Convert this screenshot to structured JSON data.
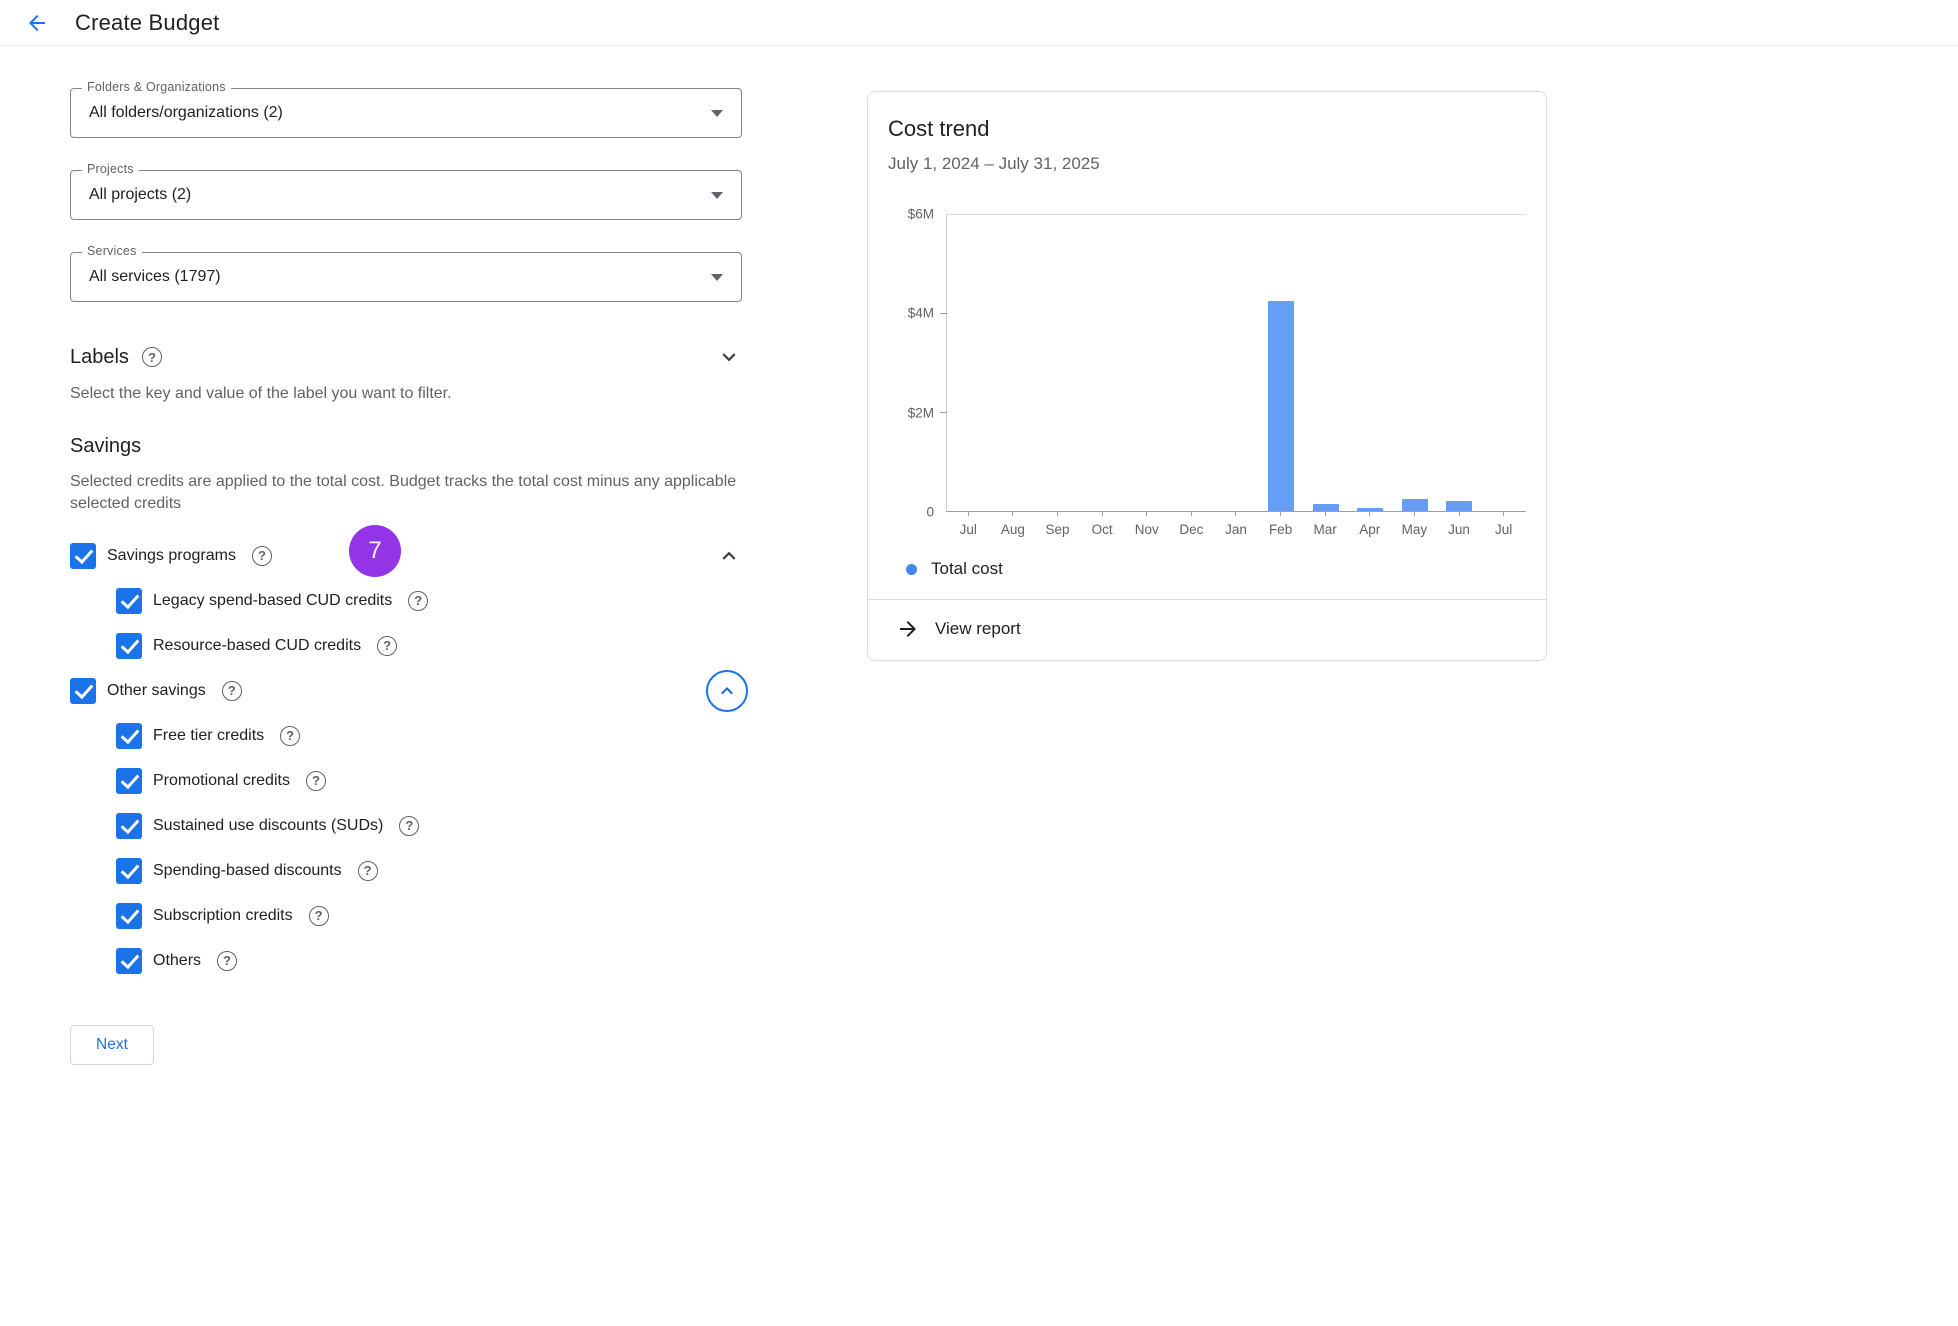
{
  "header": {
    "title": "Create Budget"
  },
  "filters": {
    "folders": {
      "label": "Folders & Organizations",
      "value": "All folders/organizations (2)"
    },
    "projects": {
      "label": "Projects",
      "value": "All projects (2)"
    },
    "services": {
      "label": "Services",
      "value": "All services (1797)"
    }
  },
  "labels_section": {
    "title": "Labels",
    "description": "Select the key and value of the label you want to filter."
  },
  "savings_section": {
    "title": "Savings",
    "description": "Selected credits are applied to the total cost. Budget tracks the total cost minus any applicable selected credits",
    "step_badge": "7",
    "groups": [
      {
        "label": "Savings programs",
        "checked": true,
        "children": [
          {
            "label": "Legacy spend-based CUD credits",
            "checked": true
          },
          {
            "label": "Resource-based CUD credits",
            "checked": true
          }
        ]
      },
      {
        "label": "Other savings",
        "checked": true,
        "children": [
          {
            "label": "Free tier credits",
            "checked": true
          },
          {
            "label": "Promotional credits",
            "checked": true
          },
          {
            "label": "Sustained use discounts (SUDs)",
            "checked": true
          },
          {
            "label": "Spending-based discounts",
            "checked": true
          },
          {
            "label": "Subscription credits",
            "checked": true
          },
          {
            "label": "Others",
            "checked": true
          }
        ]
      }
    ]
  },
  "actions": {
    "next_label": "Next"
  },
  "cost_trend": {
    "title": "Cost trend",
    "subtitle": "July 1, 2024 – July 31, 2025",
    "legend": "Total cost",
    "view_report_label": "View report"
  },
  "colors": {
    "accent_blue": "#1a73e8",
    "bar_blue": "#669df6",
    "legend_dot_blue": "#4285f4",
    "badge_purple": "#9334e6"
  },
  "chart_data": {
    "type": "bar",
    "title": "Cost trend",
    "series_name": "Total cost",
    "categories": [
      "Jul",
      "Aug",
      "Sep",
      "Oct",
      "Nov",
      "Dec",
      "Jan",
      "Feb",
      "Mar",
      "Apr",
      "May",
      "Jun",
      "Jul"
    ],
    "values": [
      0,
      0,
      0,
      0,
      0,
      0,
      0,
      4.25,
      0.15,
      0.06,
      0.25,
      0.2,
      0
    ],
    "unit": "$M",
    "ylim": [
      0,
      6
    ],
    "yticks": [
      {
        "label": "$6M",
        "value": 6
      },
      {
        "label": "$4M",
        "value": 4
      },
      {
        "label": "$2M",
        "value": 2
      },
      {
        "label": "0",
        "value": 0
      }
    ],
    "xlabel": "",
    "ylabel": "",
    "legend_position": "bottom-left",
    "grid": "top-line-only"
  }
}
